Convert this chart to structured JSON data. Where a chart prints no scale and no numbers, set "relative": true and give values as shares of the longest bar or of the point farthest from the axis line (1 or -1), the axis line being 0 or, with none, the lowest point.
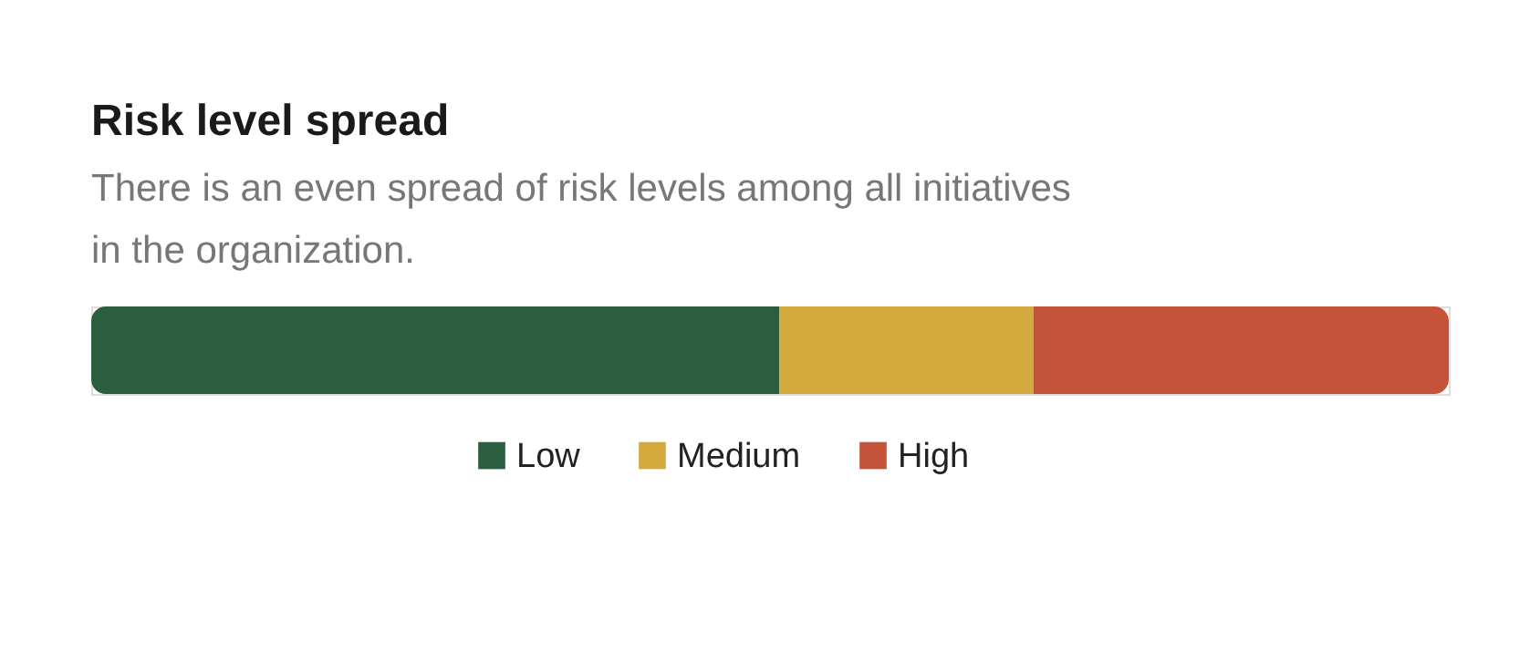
{
  "chart_data": {
    "type": "bar",
    "orientation": "horizontal",
    "stacked": true,
    "relative": true,
    "title": "Risk level spread",
    "subtitle": "There is an even spread of risk levels among all initiatives in the organization.",
    "categories": [
      null
    ],
    "series": [
      {
        "name": "Low",
        "color": "#2a5e3f",
        "values": [
          0.507
        ]
      },
      {
        "name": "Medium",
        "color": "#d4a93e",
        "values": [
          0.187
        ]
      },
      {
        "name": "High",
        "color": "#c4533a",
        "values": [
          0.306
        ]
      }
    ],
    "legend": "bottom"
  }
}
